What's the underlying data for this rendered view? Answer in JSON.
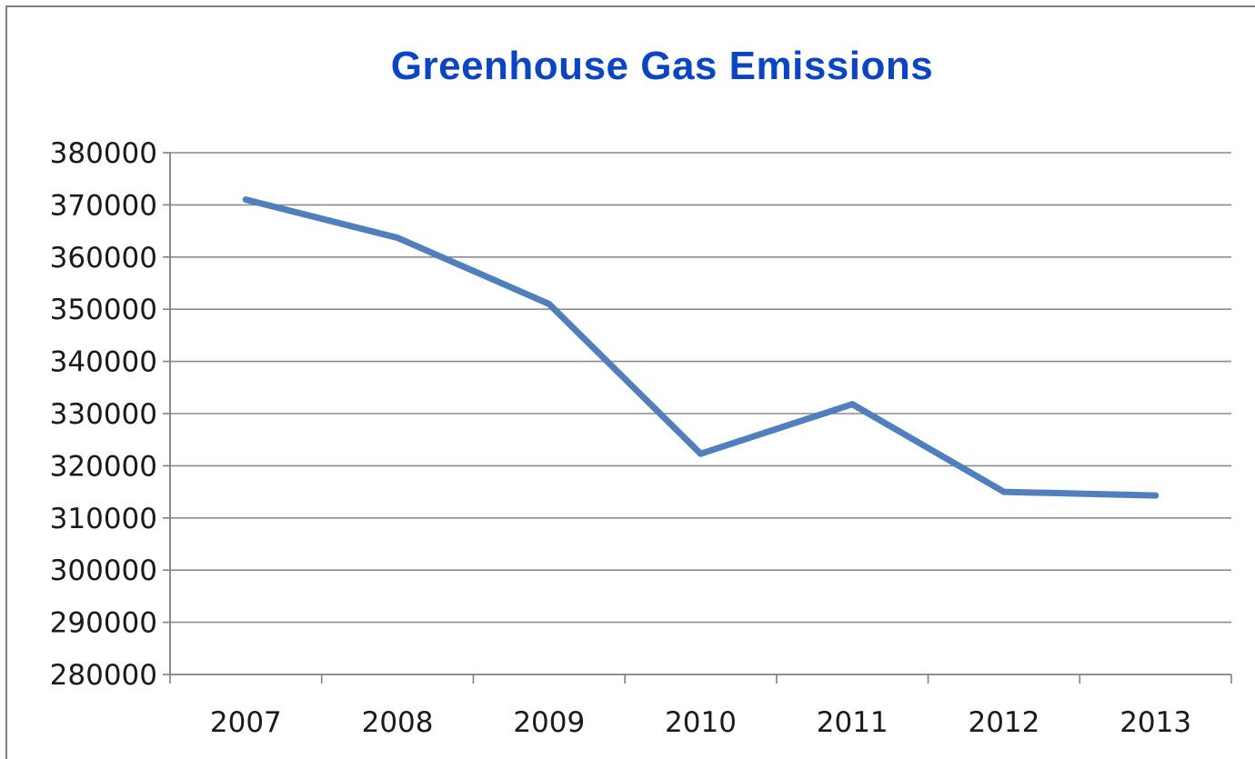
{
  "chart_data": {
    "type": "line",
    "title": "Greenhouse Gas Emissions",
    "xlabel": "",
    "ylabel": "",
    "categories": [
      "2007",
      "2008",
      "2009",
      "2010",
      "2011",
      "2012",
      "2013"
    ],
    "series": [
      {
        "values": [
          371000,
          363700,
          351000,
          322300,
          331800,
          315000,
          314300
        ]
      }
    ],
    "ylim": [
      280000,
      380000
    ],
    "yticks": [
      "280000",
      "290000",
      "300000",
      "310000",
      "320000",
      "330000",
      "340000",
      "350000",
      "360000",
      "370000",
      "380000"
    ],
    "grid": true,
    "legend": "none"
  },
  "colors": {
    "title": "#0a46c4",
    "series": "#4f7fbc",
    "gridline": "#8c8c8c",
    "axis": "#7f7f7f"
  }
}
